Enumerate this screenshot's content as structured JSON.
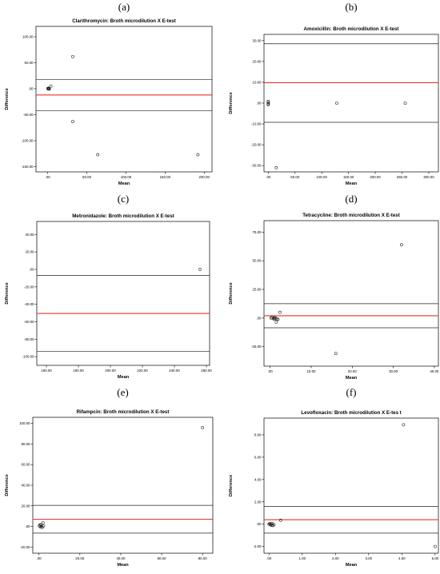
{
  "chart_data": [
    {
      "type": "scatter",
      "panel_label": "(a)",
      "title": "Clarithromycin: Broth microdilution X E-test",
      "xlabel": "Mean",
      "ylabel": "Difference",
      "xlim": [
        -15,
        210
      ],
      "ylim": [
        -160,
        120
      ],
      "xticks": [
        0,
        50,
        100,
        150,
        200
      ],
      "xtick_labels": [
        ".00",
        "50.00",
        "100.00",
        "150.00",
        "200.00"
      ],
      "yticks": [
        100,
        50,
        0,
        -50,
        -100,
        -150
      ],
      "ytick_labels": [
        "100.00",
        "50.00",
        ".00",
        "-50.00",
        "-100.00",
        "-150.00"
      ],
      "mean_line": -12,
      "limit_lines": [
        18,
        -42
      ],
      "points": [
        [
          0.3,
          0.5
        ],
        [
          0.6,
          -0.3
        ],
        [
          1.0,
          1.0
        ],
        [
          1.4,
          0.2
        ],
        [
          2.0,
          -0.6
        ],
        [
          4.0,
          5.0
        ],
        [
          32,
          62
        ],
        [
          32,
          -63
        ],
        [
          64,
          -127
        ],
        [
          192,
          -127
        ]
      ]
    },
    {
      "type": "scatter",
      "panel_label": "(b)",
      "title": "Amoxicillin: Broth microdilution X E-test",
      "xlabel": "Mean",
      "ylabel": "Difference",
      "xlim": [
        -8,
        318
      ],
      "ylim": [
        -33,
        33
      ],
      "xticks": [
        0,
        50,
        100,
        150,
        200,
        250,
        300
      ],
      "xtick_labels": [
        ".00",
        "50.00",
        "100.00",
        "150.00",
        "200.00",
        "250.00",
        "300.00"
      ],
      "yticks": [
        30,
        20,
        10,
        0,
        -10,
        -20,
        -30
      ],
      "ytick_labels": [
        "30.00",
        "20.00",
        "10.00",
        ".00",
        "-10.00",
        "-20.00",
        "-30.00"
      ],
      "mean_line": 9.8,
      "limit_lines": [
        28.5,
        -9.2
      ],
      "points": [
        [
          0,
          0.8
        ],
        [
          0,
          0.2
        ],
        [
          0,
          -0.3
        ],
        [
          0,
          -0.7
        ],
        [
          128,
          0
        ],
        [
          256,
          0
        ],
        [
          15,
          -31
        ]
      ]
    },
    {
      "type": "scatter",
      "panel_label": "(c)",
      "title": "Metronidazole: Broth microdilution X E-test",
      "xlabel": "Mean",
      "ylabel": "Difference",
      "xlim": [
        154,
        262
      ],
      "ylim": [
        -110,
        55
      ],
      "xticks": [
        160,
        180,
        200,
        220,
        240,
        260
      ],
      "xtick_labels": [
        "160.00",
        "180.00",
        "200.00",
        "220.00",
        "240.00",
        "260.00"
      ],
      "yticks": [
        40,
        20,
        0,
        -20,
        -40,
        -60,
        -80,
        -100
      ],
      "ytick_labels": [
        "40.00",
        "20.00",
        ".00",
        "-20.00",
        "-40.00",
        "-60.00",
        "-80.00",
        "-100.00"
      ],
      "mean_line": -50.5,
      "limit_lines": [
        -7,
        -94
      ],
      "points": [
        [
          256,
          0
        ]
      ]
    },
    {
      "type": "scatter",
      "panel_label": "(d)",
      "title": "Tetracycline: Broth microdilution X E-test",
      "xlabel": "Mean",
      "ylabel": "Difference",
      "xlim": [
        -1.5,
        41
      ],
      "ylim": [
        -42,
        85
      ],
      "xticks": [
        0,
        10,
        20,
        30,
        40
      ],
      "xtick_labels": [
        ".00",
        "10.00",
        "20.00",
        "30.00",
        "40.00"
      ],
      "yticks": [
        75,
        50,
        25,
        0,
        -25
      ],
      "ytick_labels": [
        "75.00",
        "50.00",
        "25.00",
        ".00",
        "-25.00"
      ],
      "mean_line": 2,
      "limit_lines": [
        12.5,
        -8.5
      ],
      "points": [
        [
          0.2,
          0
        ],
        [
          0.5,
          0.4
        ],
        [
          0.8,
          -0.5
        ],
        [
          1.0,
          0.2
        ],
        [
          1.3,
          0
        ],
        [
          1.6,
          -0.8
        ],
        [
          1.0,
          -1.0
        ],
        [
          1.5,
          -3.5
        ],
        [
          1.9,
          -1.2
        ],
        [
          2.4,
          5
        ],
        [
          16,
          -31
        ],
        [
          32,
          64
        ]
      ]
    },
    {
      "type": "scatter",
      "panel_label": "(e)",
      "title": "Rifampcin: Broth microdilution X E-test",
      "xlabel": "Mean",
      "ylabel": "Difference",
      "xlim": [
        -3,
        85
      ],
      "ylim": [
        -26,
        106
      ],
      "xticks": [
        0,
        20,
        40,
        60,
        80
      ],
      "xtick_labels": [
        ".00",
        "20.00",
        "40.00",
        "60.00",
        "80.00"
      ],
      "yticks": [
        100,
        80,
        60,
        40,
        20,
        0,
        -20
      ],
      "ytick_labels": [
        "100.00",
        "80.00",
        "60.00",
        "40.00",
        "20.00",
        ".00",
        "-20.00"
      ],
      "mean_line": 7,
      "limit_lines": [
        20.5,
        -6.5
      ],
      "points": [
        [
          0.2,
          0.5
        ],
        [
          0.5,
          1.5
        ],
        [
          0.8,
          -0.5
        ],
        [
          1.0,
          2
        ],
        [
          1.2,
          0
        ],
        [
          1.6,
          -1
        ],
        [
          2,
          3.5
        ],
        [
          2.2,
          0.5
        ],
        [
          80,
          96
        ]
      ]
    },
    {
      "type": "scatter",
      "panel_label": "(f)",
      "title": "Levofloxacin: Broth microdilution X E-tes",
      "title_suffix": "t",
      "xlabel": "Mean",
      "ylabel": "Difference",
      "xlim": [
        -0.15,
        5.1
      ],
      "ylim": [
        -2.6,
        9.5
      ],
      "xticks": [
        0,
        1,
        2,
        3,
        4,
        5
      ],
      "xtick_labels": [
        ".00",
        "1.00",
        "2.00",
        "3.00",
        "4.00",
        "5.00"
      ],
      "yticks": [
        8,
        6,
        4,
        2,
        0,
        -2
      ],
      "ytick_labels": [
        "8.00",
        "6.00",
        "4.00",
        "2.00",
        ".00",
        "-2.00"
      ],
      "mean_line": 0.4,
      "limit_lines": [
        1.6,
        -0.8
      ],
      "points": [
        [
          0,
          0
        ],
        [
          0.02,
          0.05
        ],
        [
          0.04,
          -0.05
        ],
        [
          0.06,
          0.02
        ],
        [
          0.08,
          -0.1
        ],
        [
          0.1,
          0.06
        ],
        [
          0.12,
          -0.12
        ],
        [
          0.15,
          -0.05
        ],
        [
          0.35,
          0.35
        ],
        [
          4.05,
          8.9
        ],
        [
          5.0,
          -2.0
        ]
      ]
    }
  ]
}
